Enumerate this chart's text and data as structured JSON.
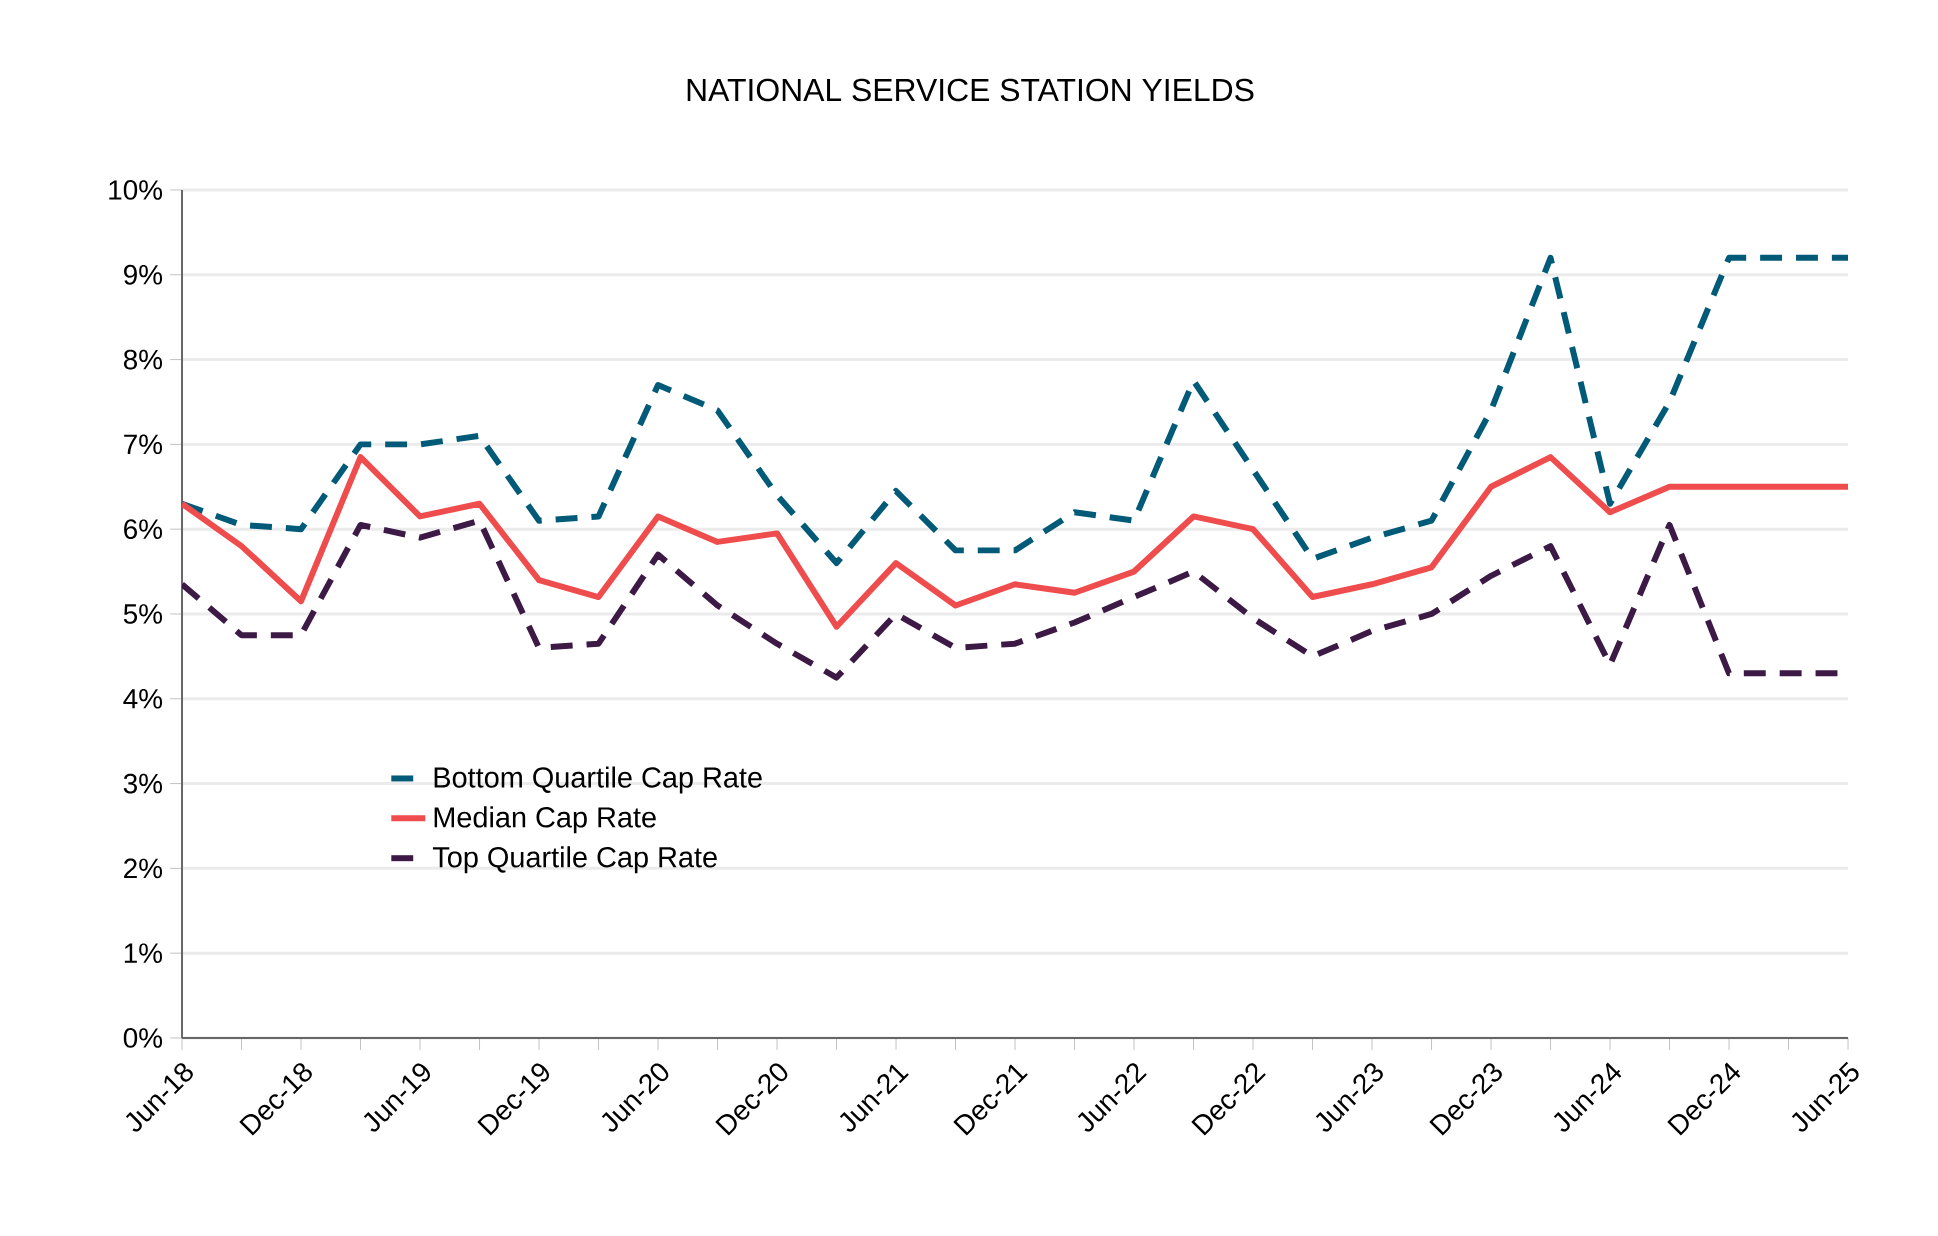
{
  "chart_data": {
    "type": "line",
    "title": "NATIONAL SERVICE STATION YIELDS",
    "categories": [
      "Jun-18",
      null,
      "Dec-18",
      null,
      "Jun-19",
      null,
      "Dec-19",
      null,
      "Jun-20",
      null,
      "Dec-20",
      null,
      "Jun-21",
      null,
      "Dec-21",
      null,
      "Jun-22",
      null,
      "Dec-22",
      null,
      "Jun-23",
      null,
      "Dec-23",
      null,
      "Jun-24",
      null,
      "Dec-24",
      null,
      "Jun-25"
    ],
    "series": [
      {
        "name": "Bottom Quartile Cap Rate",
        "color": "#005a78",
        "line_style": "dashed",
        "values": [
          6.3,
          6.05,
          6.0,
          7.0,
          7.0,
          7.1,
          6.1,
          6.15,
          7.7,
          7.4,
          6.4,
          5.6,
          6.45,
          5.75,
          5.75,
          6.2,
          6.1,
          7.75,
          6.7,
          5.65,
          5.9,
          6.1,
          7.4,
          9.2,
          6.3,
          7.5,
          9.2,
          9.2,
          9.2
        ]
      },
      {
        "name": "Median Cap Rate",
        "color": "#ef4d4d",
        "line_style": "solid",
        "values": [
          6.3,
          5.8,
          5.15,
          6.85,
          6.15,
          6.3,
          5.4,
          5.2,
          6.15,
          5.85,
          5.95,
          4.85,
          5.6,
          5.1,
          5.35,
          5.25,
          5.5,
          6.15,
          6.0,
          5.2,
          5.35,
          5.55,
          6.5,
          6.85,
          6.2,
          6.5,
          6.5,
          6.5,
          6.5
        ]
      },
      {
        "name": "Top Quartile Cap Rate",
        "color": "#3d1a45",
        "line_style": "dashed",
        "values": [
          5.35,
          4.75,
          4.75,
          6.05,
          5.9,
          6.1,
          4.6,
          4.65,
          5.7,
          5.1,
          4.65,
          4.25,
          5.0,
          4.6,
          4.65,
          4.9,
          5.2,
          5.5,
          4.95,
          4.5,
          4.8,
          5.0,
          5.45,
          5.8,
          4.4,
          6.05,
          4.3,
          4.3,
          4.3
        ]
      }
    ],
    "ylim": [
      0,
      10
    ],
    "yticks": [
      {
        "value": 0,
        "label": "0%"
      },
      {
        "value": 1,
        "label": "1%"
      },
      {
        "value": 2,
        "label": "2%"
      },
      {
        "value": 3,
        "label": "3%"
      },
      {
        "value": 4,
        "label": "4%"
      },
      {
        "value": 5,
        "label": "5%"
      },
      {
        "value": 6,
        "label": "6%"
      },
      {
        "value": 7,
        "label": "7%"
      },
      {
        "value": 8,
        "label": "8%"
      },
      {
        "value": 9,
        "label": "9%"
      },
      {
        "value": 10,
        "label": "10%"
      }
    ],
    "grid": "y",
    "legend": "bottom left",
    "marker": "none"
  }
}
